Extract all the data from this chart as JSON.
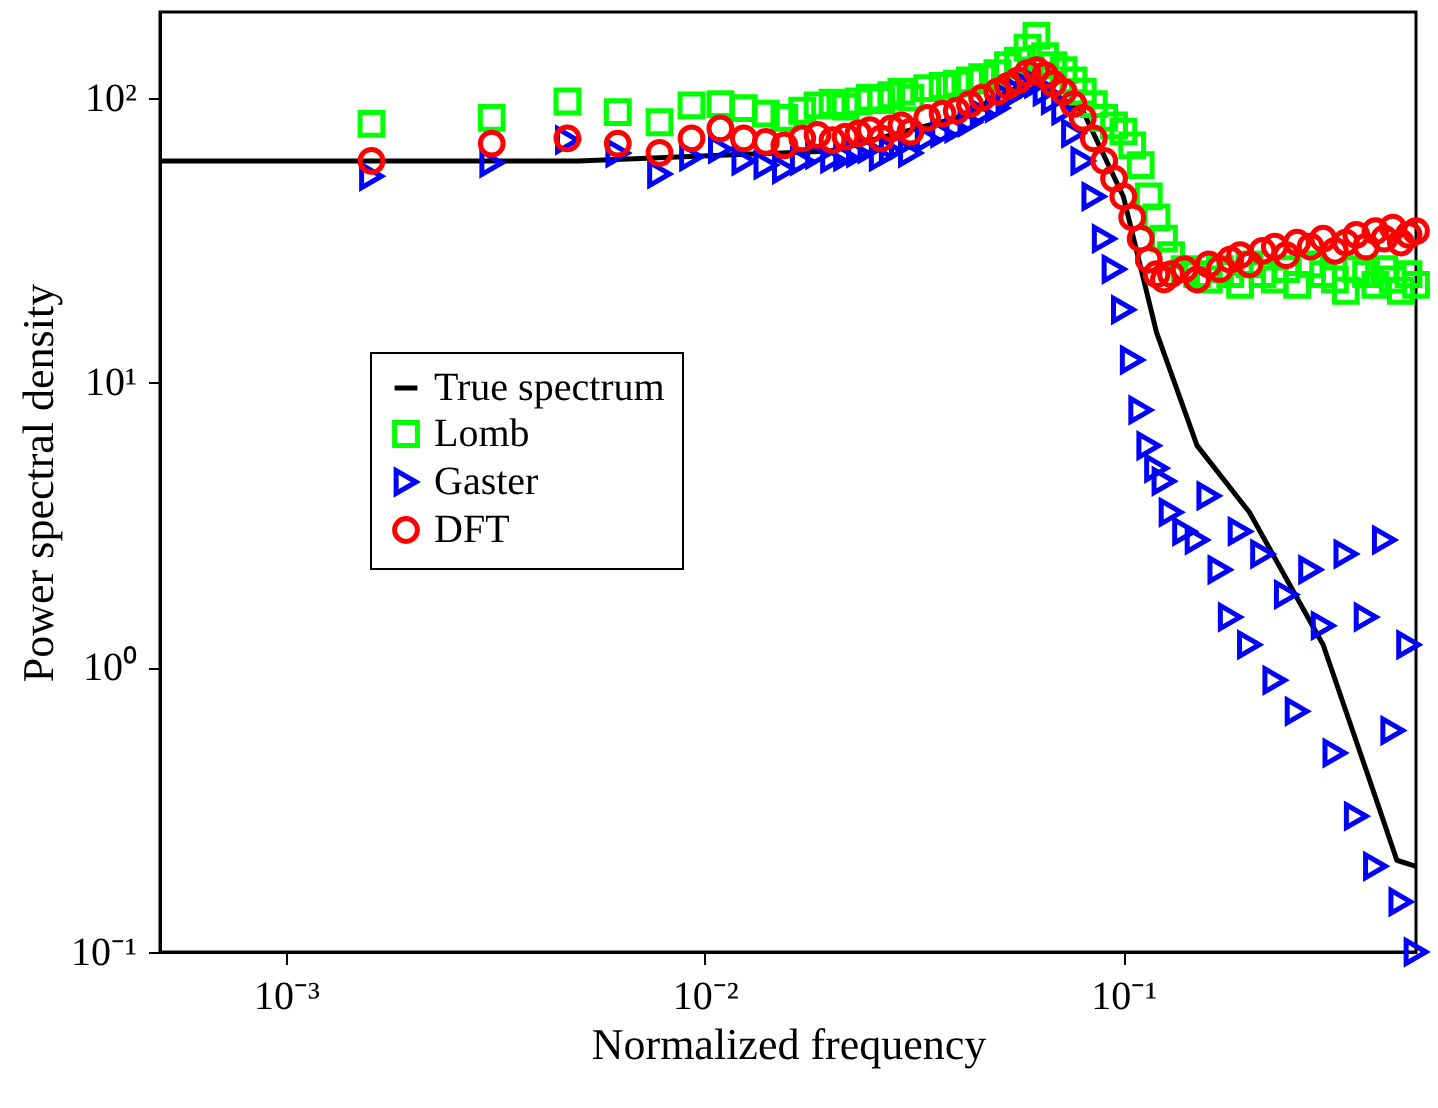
{
  "chart_data": {
    "type": "scatter",
    "xlabel": "Normalized frequency",
    "ylabel": "Power spectral density",
    "log": "xy",
    "grid": false,
    "legend": "left",
    "xlim": [
      0.0005,
      0.5
    ],
    "ylim": [
      0.1,
      200
    ],
    "xticks": [
      {
        "value": 0.001,
        "label": "10⁻³"
      },
      {
        "value": 0.01,
        "label": "10⁻²"
      },
      {
        "value": 0.1,
        "label": "10⁻¹"
      }
    ],
    "yticks": [
      {
        "value": 0.1,
        "label": "10⁻¹"
      },
      {
        "value": 1,
        "label": "10⁰"
      },
      {
        "value": 10,
        "label": "10¹"
      },
      {
        "value": 100,
        "label": "10²"
      }
    ],
    "x": [
      0.0016,
      0.0031,
      0.0047,
      0.0062,
      0.0078,
      0.0093,
      0.0109,
      0.0124,
      0.014,
      0.0155,
      0.0171,
      0.0186,
      0.0202,
      0.0217,
      0.0233,
      0.0248,
      0.0264,
      0.0279,
      0.0295,
      0.031,
      0.034,
      0.037,
      0.04,
      0.043,
      0.046,
      0.05,
      0.053,
      0.056,
      0.059,
      0.062,
      0.065,
      0.068,
      0.072,
      0.076,
      0.08,
      0.085,
      0.09,
      0.095,
      0.1,
      0.105,
      0.11,
      0.115,
      0.12,
      0.125,
      0.13,
      0.14,
      0.15,
      0.16,
      0.17,
      0.18,
      0.19,
      0.2,
      0.215,
      0.23,
      0.245,
      0.26,
      0.28,
      0.3,
      0.32,
      0.34,
      0.36,
      0.38,
      0.4,
      0.42,
      0.44,
      0.46,
      0.48,
      0.5
    ],
    "series": [
      {
        "name": "True spectrum",
        "type": "line",
        "marker": "none",
        "line_style": "solid",
        "color": "#000000",
        "x": [
          0.0005,
          0.005,
          0.02,
          0.04,
          0.06,
          0.08,
          0.1,
          0.12,
          0.15,
          0.2,
          0.3,
          0.4,
          0.45,
          0.5
        ],
        "values": [
          60,
          60,
          65,
          85,
          115,
          90,
          45,
          15,
          6,
          3.5,
          1.2,
          0.35,
          0.21,
          0.2
        ]
      },
      {
        "name": "Lomb",
        "marker": "square",
        "color": "#00ff00",
        "values": [
          81,
          85,
          97,
          89,
          82,
          94,
          95,
          92,
          88,
          85,
          90,
          94,
          96,
          93,
          97,
          100,
          98,
          102,
          105,
          100,
          108,
          110,
          112,
          115,
          118,
          122,
          130,
          135,
          150,
          165,
          140,
          130,
          125,
          115,
          105,
          95,
          85,
          80,
          76,
          68,
          58,
          45,
          38,
          32,
          28,
          25,
          24,
          23,
          25,
          24,
          22,
          26,
          24,
          23,
          25,
          22,
          26,
          24,
          23,
          21,
          25,
          24,
          22,
          25,
          23,
          21,
          24,
          22
        ]
      },
      {
        "name": "Gaster",
        "marker": "triangle",
        "color": "#0000ff",
        "values": [
          53,
          59,
          71,
          64,
          54,
          62,
          66,
          60,
          58,
          56,
          60,
          63,
          61,
          62,
          64,
          66,
          62,
          65,
          68,
          64,
          72,
          75,
          78,
          82,
          88,
          92,
          100,
          105,
          110,
          112,
          105,
          98,
          90,
          75,
          60,
          45,
          32,
          25,
          18,
          12,
          8,
          6,
          5,
          4.5,
          3.5,
          3,
          2.8,
          4,
          2.2,
          1.5,
          3,
          1.2,
          2.5,
          0.9,
          1.8,
          0.7,
          2.2,
          1.4,
          0.5,
          2.5,
          0.3,
          1.5,
          0.2,
          2.8,
          0.6,
          0.15,
          1.2,
          0.1
        ]
      },
      {
        "name": "DFT",
        "marker": "circle",
        "color": "#ff0000",
        "values": [
          60,
          69,
          72,
          69,
          64,
          72,
          78,
          72,
          70,
          68,
          72,
          74,
          71,
          73,
          75,
          77,
          72,
          78,
          80,
          76,
          85,
          88,
          90,
          95,
          100,
          105,
          110,
          115,
          122,
          125,
          120,
          112,
          105,
          95,
          85,
          72,
          60,
          52,
          45,
          38,
          32,
          27,
          24,
          23,
          24,
          25,
          23,
          26,
          25,
          27,
          28,
          26,
          29,
          30,
          28,
          31,
          30,
          32,
          29,
          31,
          33,
          30,
          34,
          32,
          35,
          31,
          33,
          34
        ]
      }
    ]
  }
}
